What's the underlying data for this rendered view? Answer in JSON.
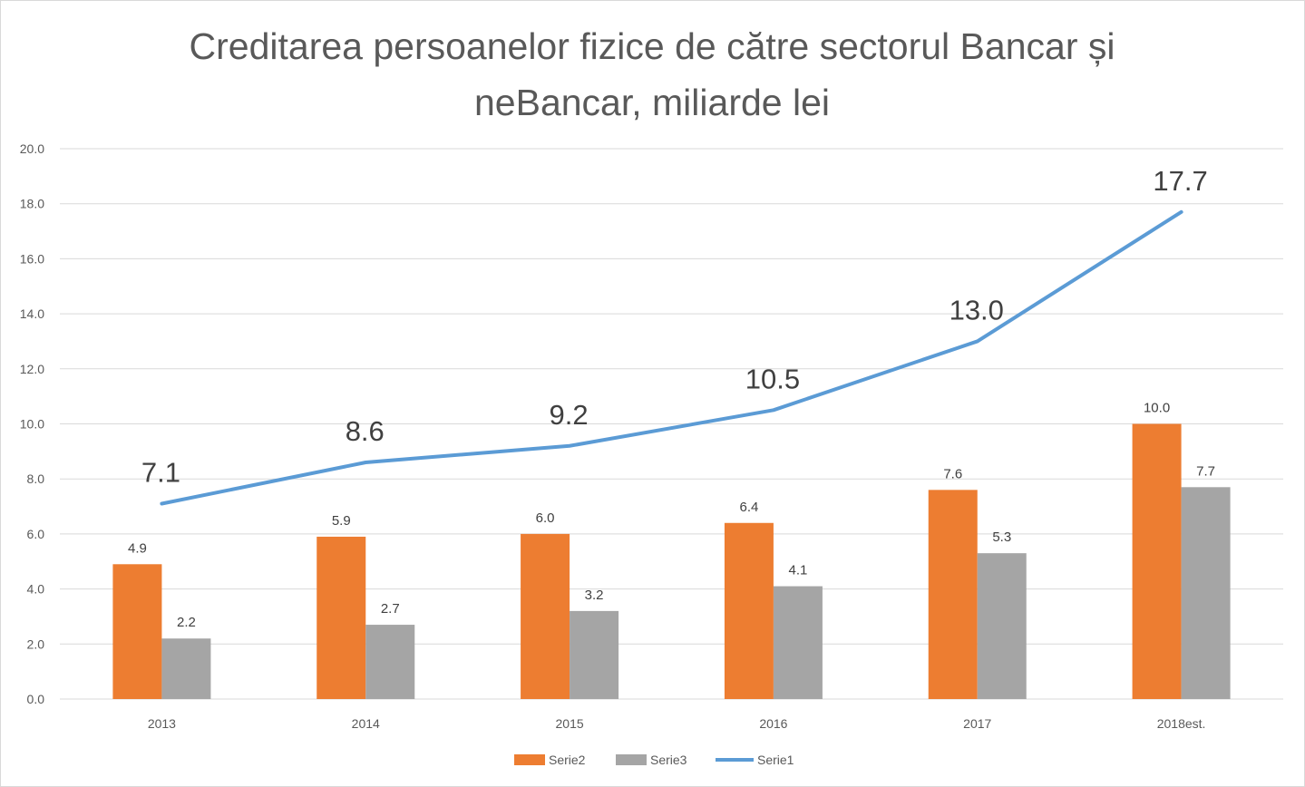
{
  "chart_data": {
    "type": "bar",
    "title": "Creditarea persoanelor fizice de către sectorul Bancar și neBancar, miliarde lei",
    "title_lines": [
      "Creditarea persoanelor fizice de către sectorul Bancar și",
      "neBancar, miliarde lei"
    ],
    "xlabel": "",
    "ylabel": "",
    "categories": [
      "2013",
      "2014",
      "2015",
      "2016",
      "2017",
      "2018est."
    ],
    "ylim": [
      0,
      20
    ],
    "yticks": [
      0,
      2,
      4,
      6,
      8,
      10,
      12,
      14,
      16,
      18,
      20
    ],
    "ytick_labels": [
      "0.0",
      "2.0",
      "4.0",
      "6.0",
      "8.0",
      "10.0",
      "12.0",
      "14.0",
      "16.0",
      "18.0",
      "20.0"
    ],
    "grid": true,
    "legend_position": "bottom",
    "series": [
      {
        "name": "Serie2",
        "kind": "bar",
        "color": "#ED7D31",
        "values": [
          4.9,
          5.9,
          6.0,
          6.4,
          7.6,
          10.0
        ],
        "labels": [
          "4.9",
          "5.9",
          "6.0",
          "6.4",
          "7.6",
          "10.0"
        ]
      },
      {
        "name": "Serie3",
        "kind": "bar",
        "color": "#A5A5A5",
        "values": [
          2.2,
          2.7,
          3.2,
          4.1,
          5.3,
          7.7
        ],
        "labels": [
          "2.2",
          "2.7",
          "3.2",
          "4.1",
          "5.3",
          "7.7"
        ]
      },
      {
        "name": "Serie1",
        "kind": "line",
        "color": "#5B9BD5",
        "values": [
          7.1,
          8.6,
          9.2,
          10.5,
          13.0,
          17.7
        ],
        "labels": [
          "7.1",
          "8.6",
          "9.2",
          "10.5",
          "13.0",
          "17.7"
        ]
      }
    ]
  }
}
